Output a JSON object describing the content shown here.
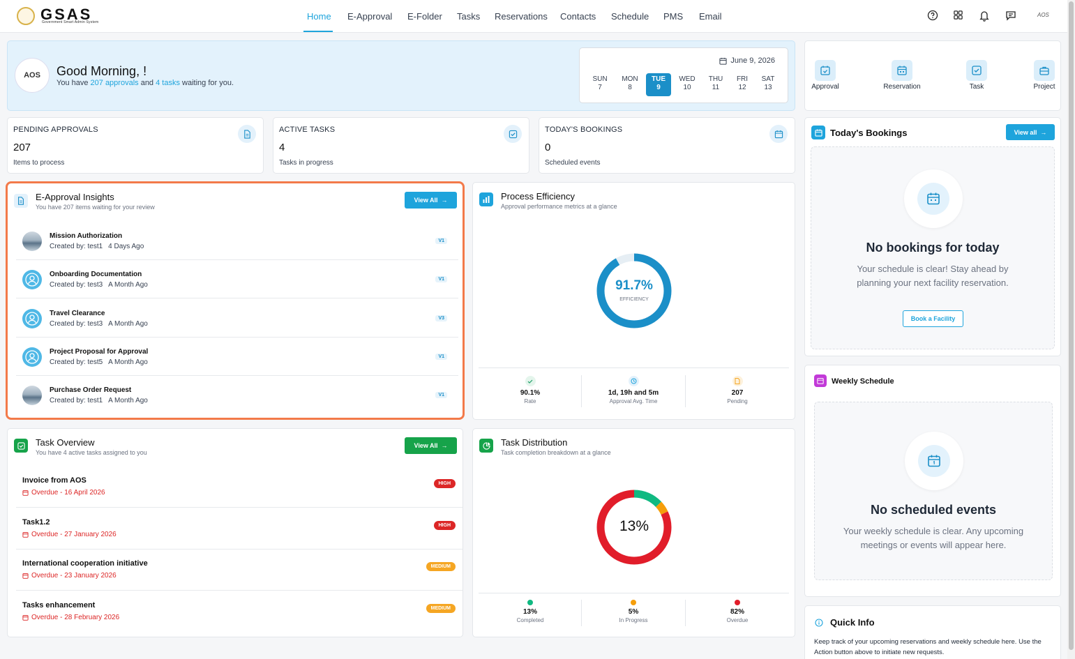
{
  "nav": {
    "logo_text": "GSAS",
    "logo_sub": "Government Smart Admin System",
    "links": [
      "Home",
      "E-Approval",
      "E-Folder",
      "Tasks",
      "Reservations",
      "Contacts",
      "Schedule",
      "PMS",
      "Email"
    ],
    "active": "Home",
    "user_badge": "AOS",
    "icons": [
      "help-icon",
      "apps-icon",
      "bell-icon",
      "chat-icon"
    ]
  },
  "greeting": {
    "avatar_text": "AOS",
    "title": "Good Morning, !",
    "sub_pre": "You have ",
    "approvals": "207 approvals",
    "sub_mid": " and ",
    "tasks": "4 tasks",
    "sub_post": " waiting for you."
  },
  "calendar": {
    "date": "June 9, 2026",
    "days": [
      {
        "name": "SUN",
        "num": "7"
      },
      {
        "name": "MON",
        "num": "8"
      },
      {
        "name": "TUE",
        "num": "9"
      },
      {
        "name": "WED",
        "num": "10"
      },
      {
        "name": "THU",
        "num": "11"
      },
      {
        "name": "FRI",
        "num": "12"
      },
      {
        "name": "SAT",
        "num": "13"
      }
    ],
    "selected": "TUE"
  },
  "quick_actions": [
    "Approval",
    "Reservation",
    "Task",
    "Project"
  ],
  "stats": [
    {
      "label": "PENDING APPROVALS",
      "value": "207",
      "sub": "Items to process"
    },
    {
      "label": "ACTIVE TASKS",
      "value": "4",
      "sub": "Tasks in progress"
    },
    {
      "label": "TODAY'S BOOKINGS",
      "value": "0",
      "sub": "Scheduled events"
    }
  ],
  "approvals_panel": {
    "title": "E-Approval Insights",
    "sub": "You have 207 items waiting for your review",
    "button": "View All",
    "items": [
      {
        "title": "Mission Authorization",
        "author": "Created by: test1",
        "age": "4 Days Ago",
        "version": "V1",
        "avatar": "photo"
      },
      {
        "title": "Onboarding Documentation",
        "author": "Created by: test3",
        "age": "A Month Ago",
        "version": "V1",
        "avatar": "user"
      },
      {
        "title": "Travel Clearance",
        "author": "Created by: test3",
        "age": "A Month Ago",
        "version": "V3",
        "avatar": "user"
      },
      {
        "title": "Project Proposal for Approval",
        "author": "Created by: test5",
        "age": "A Month Ago",
        "version": "V1",
        "avatar": "user"
      },
      {
        "title": "Purchase Order Request",
        "author": "Created by: test1",
        "age": "A Month Ago",
        "version": "V1",
        "avatar": "photo"
      }
    ]
  },
  "efficiency_panel": {
    "title": "Process Efficiency",
    "sub": "Approval performance metrics at a glance",
    "donut_value": "91.7%",
    "donut_label": "EFFICIENCY",
    "donut_fraction": 0.917,
    "metrics": [
      {
        "value": "90.1%",
        "label": "Rate",
        "icon": "check-icon",
        "color": "#22a06b"
      },
      {
        "value": "1d, 19h and 5m",
        "label": "Approval Avg. Time",
        "icon": "clock-icon",
        "color": "#1ea4dc"
      },
      {
        "value": "207",
        "label": "Pending",
        "icon": "document-icon",
        "color": "#f5a623"
      }
    ]
  },
  "tasks_panel": {
    "title": "Task Overview",
    "sub": "You have 4 active tasks assigned to you",
    "button": "View All",
    "items": [
      {
        "title": "Invoice from AOS",
        "due": "Overdue - 16 April 2026",
        "priority": "HIGH"
      },
      {
        "title": "Task1.2",
        "due": "Overdue - 27 January 2026",
        "priority": "HIGH"
      },
      {
        "title": "International cooperation initiative",
        "due": "Overdue - 23 January 2026",
        "priority": "MEDIUM"
      },
      {
        "title": "Tasks enhancement",
        "due": "Overdue - 28 February 2026",
        "priority": "MEDIUM"
      }
    ]
  },
  "distribution_panel": {
    "title": "Task Distribution",
    "sub": "Task completion breakdown at a glance",
    "center": "13%",
    "segments": [
      {
        "label": "Completed",
        "value": "13%",
        "fraction": 0.13,
        "color": "#10b981"
      },
      {
        "label": "In Progress",
        "value": "5%",
        "fraction": 0.05,
        "color": "#f59e0b"
      },
      {
        "label": "Overdue",
        "value": "82%",
        "fraction": 0.82,
        "color": "#e11d2a"
      }
    ]
  },
  "bookings_panel": {
    "title": "Today's Bookings",
    "button": "View all",
    "empty_title": "No bookings for today",
    "empty_text": "Your schedule is clear! Stay ahead by planning your next facility reservation.",
    "action": "Book a Facility"
  },
  "schedule_panel": {
    "title": "Weekly Schedule",
    "empty_title": "No scheduled events",
    "empty_text": "Your weekly schedule is clear. Any upcoming meetings or events will appear here."
  },
  "quick_info": {
    "title": "Quick Info",
    "text": "Keep track of your upcoming reservations and weekly schedule here. Use the Action button above to initiate new requests."
  },
  "colors": {
    "accent": "#1ea4dc",
    "green": "#16a34a",
    "danger": "#dc2626",
    "highlight_border": "#f37a4a"
  }
}
